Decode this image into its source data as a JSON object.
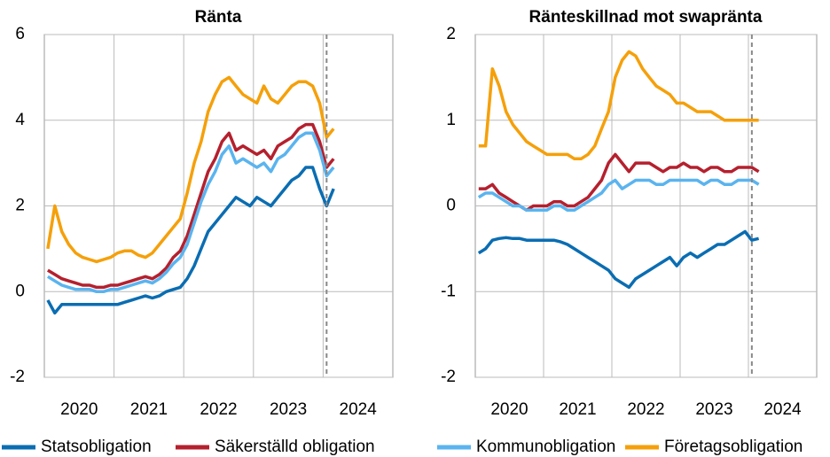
{
  "chart_data": [
    {
      "type": "line",
      "title": "Ränta",
      "x": [
        2020.05,
        2020.15,
        2020.25,
        2020.35,
        2020.45,
        2020.55,
        2020.65,
        2020.75,
        2020.85,
        2020.95,
        2021.05,
        2021.15,
        2021.25,
        2021.35,
        2021.45,
        2021.55,
        2021.65,
        2021.75,
        2021.85,
        2021.95,
        2022.05,
        2022.15,
        2022.25,
        2022.35,
        2022.45,
        2022.55,
        2022.65,
        2022.75,
        2022.85,
        2022.95,
        2023.05,
        2023.15,
        2023.25,
        2023.35,
        2023.45,
        2023.55,
        2023.65,
        2023.75,
        2023.85,
        2023.95,
        2024.05,
        2024.15
      ],
      "series": [
        {
          "name": "Statsobligation",
          "color": "#0a6db2",
          "values": [
            -0.2,
            -0.5,
            -0.3,
            -0.3,
            -0.3,
            -0.3,
            -0.3,
            -0.3,
            -0.3,
            -0.3,
            -0.3,
            -0.25,
            -0.2,
            -0.15,
            -0.1,
            -0.15,
            -0.1,
            0.0,
            0.05,
            0.1,
            0.3,
            0.6,
            1.0,
            1.4,
            1.6,
            1.8,
            2.0,
            2.2,
            2.1,
            2.0,
            2.2,
            2.1,
            2.0,
            2.2,
            2.4,
            2.6,
            2.7,
            2.9,
            2.9,
            2.4,
            2.0,
            2.4
          ]
        },
        {
          "name": "Säkerställd obligation",
          "color": "#b5202e",
          "values": [
            0.5,
            0.4,
            0.3,
            0.25,
            0.2,
            0.15,
            0.15,
            0.1,
            0.1,
            0.15,
            0.15,
            0.2,
            0.25,
            0.3,
            0.35,
            0.3,
            0.4,
            0.55,
            0.8,
            0.95,
            1.3,
            1.8,
            2.3,
            2.8,
            3.1,
            3.5,
            3.7,
            3.3,
            3.4,
            3.3,
            3.2,
            3.3,
            3.1,
            3.4,
            3.5,
            3.6,
            3.8,
            3.9,
            3.9,
            3.5,
            2.9,
            3.1
          ]
        },
        {
          "name": "Kommunobligation",
          "color": "#5ab4ef",
          "values": [
            0.35,
            0.25,
            0.15,
            0.1,
            0.05,
            0.05,
            0.05,
            0.0,
            0.0,
            0.05,
            0.05,
            0.1,
            0.15,
            0.2,
            0.25,
            0.2,
            0.3,
            0.45,
            0.65,
            0.8,
            1.1,
            1.6,
            2.1,
            2.5,
            2.8,
            3.2,
            3.4,
            3.0,
            3.1,
            3.0,
            2.9,
            3.0,
            2.8,
            3.1,
            3.2,
            3.4,
            3.6,
            3.7,
            3.7,
            3.3,
            2.7,
            2.9
          ]
        },
        {
          "name": "Företagsobligation",
          "color": "#f5a00a",
          "values": [
            1.0,
            2.0,
            1.4,
            1.1,
            0.9,
            0.8,
            0.75,
            0.7,
            0.75,
            0.8,
            0.9,
            0.95,
            0.95,
            0.85,
            0.8,
            0.9,
            1.1,
            1.3,
            1.5,
            1.7,
            2.3,
            3.0,
            3.5,
            4.2,
            4.6,
            4.9,
            5.0,
            4.8,
            4.6,
            4.5,
            4.4,
            4.8,
            4.5,
            4.4,
            4.6,
            4.8,
            4.9,
            4.9,
            4.8,
            4.4,
            3.6,
            3.8
          ]
        }
      ],
      "xlim": [
        2020,
        2025
      ],
      "xticks": [
        {
          "value": 2020.5,
          "label": "2020"
        },
        {
          "value": 2021.5,
          "label": "2021"
        },
        {
          "value": 2022.5,
          "label": "2022"
        },
        {
          "value": 2023.5,
          "label": "2023"
        },
        {
          "value": 2024.5,
          "label": "2024"
        }
      ],
      "xgrid": [
        2021,
        2022,
        2023,
        2024
      ],
      "ylim": [
        -2,
        6
      ],
      "yticks": [
        -2,
        0,
        2,
        4,
        6
      ],
      "grid": true,
      "vline": 2024.05
    },
    {
      "type": "line",
      "title": "Ränteskillnad mot swapränta",
      "x": [
        2020.05,
        2020.15,
        2020.25,
        2020.35,
        2020.45,
        2020.55,
        2020.65,
        2020.75,
        2020.85,
        2020.95,
        2021.05,
        2021.15,
        2021.25,
        2021.35,
        2021.45,
        2021.55,
        2021.65,
        2021.75,
        2021.85,
        2021.95,
        2022.05,
        2022.15,
        2022.25,
        2022.35,
        2022.45,
        2022.55,
        2022.65,
        2022.75,
        2022.85,
        2022.95,
        2023.05,
        2023.15,
        2023.25,
        2023.35,
        2023.45,
        2023.55,
        2023.65,
        2023.75,
        2023.85,
        2023.95,
        2024.05,
        2024.15
      ],
      "series": [
        {
          "name": "Statsobligation",
          "color": "#0a6db2",
          "values": [
            -0.55,
            -0.5,
            -0.4,
            -0.38,
            -0.37,
            -0.38,
            -0.38,
            -0.4,
            -0.4,
            -0.4,
            -0.4,
            -0.4,
            -0.42,
            -0.45,
            -0.5,
            -0.55,
            -0.6,
            -0.65,
            -0.7,
            -0.75,
            -0.85,
            -0.9,
            -0.95,
            -0.85,
            -0.8,
            -0.75,
            -0.7,
            -0.65,
            -0.6,
            -0.7,
            -0.6,
            -0.55,
            -0.6,
            -0.55,
            -0.5,
            -0.45,
            -0.45,
            -0.4,
            -0.35,
            -0.3,
            -0.4,
            -0.38
          ]
        },
        {
          "name": "Säkerställd obligation",
          "color": "#b5202e",
          "values": [
            0.2,
            0.2,
            0.25,
            0.15,
            0.1,
            0.05,
            0.0,
            -0.05,
            0.0,
            0.0,
            0.0,
            0.05,
            0.05,
            0.0,
            0.0,
            0.05,
            0.1,
            0.2,
            0.3,
            0.5,
            0.6,
            0.5,
            0.4,
            0.5,
            0.5,
            0.5,
            0.45,
            0.4,
            0.45,
            0.45,
            0.5,
            0.45,
            0.45,
            0.4,
            0.45,
            0.45,
            0.4,
            0.4,
            0.45,
            0.45,
            0.45,
            0.4
          ]
        },
        {
          "name": "Kommunobligation",
          "color": "#5ab4ef",
          "values": [
            0.1,
            0.15,
            0.15,
            0.1,
            0.05,
            0.0,
            0.0,
            -0.05,
            -0.05,
            -0.05,
            -0.05,
            0.0,
            0.0,
            -0.05,
            -0.05,
            0.0,
            0.05,
            0.1,
            0.15,
            0.25,
            0.3,
            0.2,
            0.25,
            0.3,
            0.3,
            0.3,
            0.25,
            0.25,
            0.3,
            0.3,
            0.3,
            0.3,
            0.3,
            0.25,
            0.3,
            0.3,
            0.25,
            0.25,
            0.3,
            0.3,
            0.3,
            0.25
          ]
        },
        {
          "name": "Företagsobligation",
          "color": "#f5a00a",
          "values": [
            0.7,
            0.7,
            1.6,
            1.4,
            1.1,
            0.95,
            0.85,
            0.75,
            0.7,
            0.65,
            0.6,
            0.6,
            0.6,
            0.6,
            0.55,
            0.55,
            0.6,
            0.7,
            0.9,
            1.1,
            1.5,
            1.7,
            1.8,
            1.75,
            1.6,
            1.5,
            1.4,
            1.35,
            1.3,
            1.2,
            1.2,
            1.15,
            1.1,
            1.1,
            1.1,
            1.05,
            1.0,
            1.0,
            1.0,
            1.0,
            1.0,
            1.0
          ]
        }
      ],
      "xlim": [
        2020,
        2025
      ],
      "xticks": [
        {
          "value": 2020.5,
          "label": "2020"
        },
        {
          "value": 2021.5,
          "label": "2021"
        },
        {
          "value": 2022.5,
          "label": "2022"
        },
        {
          "value": 2023.5,
          "label": "2023"
        },
        {
          "value": 2024.5,
          "label": "2024"
        }
      ],
      "xgrid": [
        2021,
        2022,
        2023,
        2024
      ],
      "ylim": [
        -2,
        2
      ],
      "yticks": [
        -2,
        -1,
        0,
        1,
        2
      ],
      "grid": true,
      "vline": 2024.05
    }
  ]
}
